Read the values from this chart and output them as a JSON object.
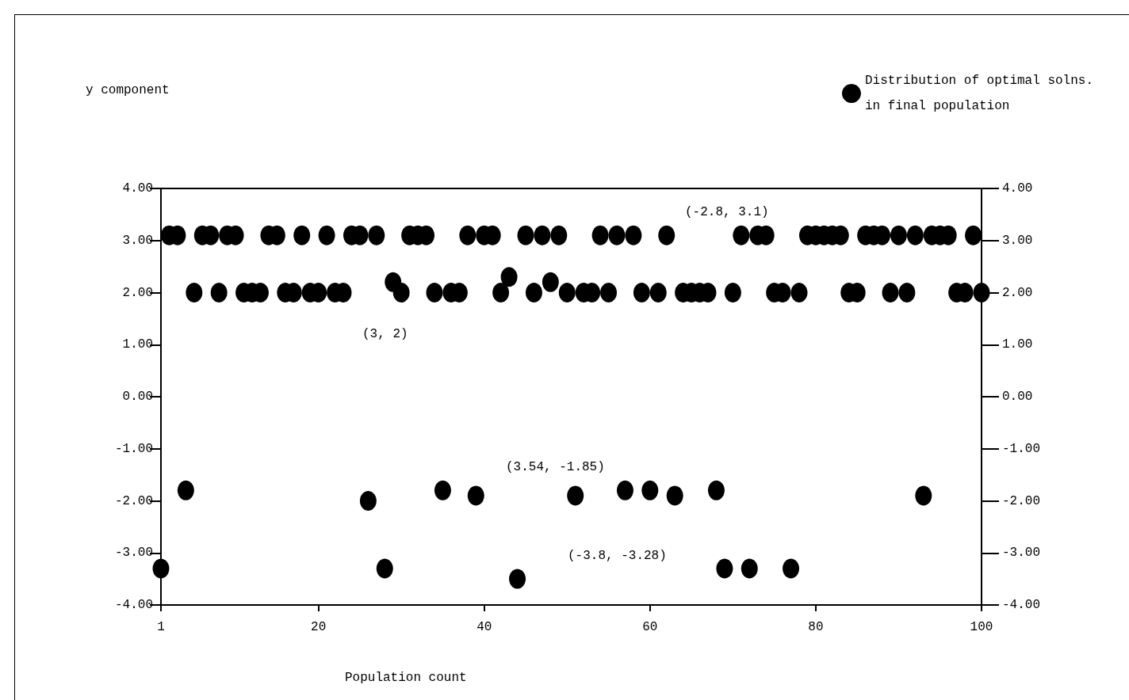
{
  "chart_data": {
    "type": "scatter",
    "xlabel": "Population count",
    "x": [
      1,
      2,
      3,
      4,
      5,
      6,
      7,
      8,
      9,
      10,
      11,
      12,
      13,
      14,
      15,
      16,
      17,
      18,
      19,
      20,
      21,
      22,
      23,
      24,
      25,
      26,
      27,
      28,
      29,
      30,
      31,
      32,
      33,
      34,
      35,
      36,
      37,
      38,
      39,
      40,
      41,
      42,
      43,
      44,
      45,
      46,
      47,
      48,
      49,
      50,
      51,
      52,
      53,
      54,
      55,
      56,
      57,
      58,
      59,
      60,
      61,
      62,
      63,
      64,
      65,
      66,
      67,
      68,
      69,
      70,
      71,
      72,
      73,
      74,
      75,
      76,
      77,
      78,
      79,
      80,
      81,
      82,
      83,
      84,
      85,
      86,
      87,
      88,
      89,
      90,
      91,
      92,
      93,
      94,
      95,
      96,
      97,
      98,
      99,
      100
    ],
    "series": [
      {
        "name": "Distribution of optimal solns.\nin final population",
        "color": "#000000",
        "values": [
          -3.3,
          3.1,
          3.1,
          -1.8,
          2,
          3.1,
          3.1,
          2,
          3.1,
          3.1,
          2,
          2,
          2,
          3.1,
          3.1,
          2,
          2,
          3.1,
          2,
          2,
          3.1,
          2,
          2,
          3.1,
          3.1,
          -2,
          3.1,
          -3.3,
          2.2,
          2,
          3.1,
          3.1,
          3.1,
          2,
          -1.8,
          2,
          2,
          3.1,
          -1.9,
          3.1,
          3.1,
          2,
          2.3,
          -3.5,
          3.1,
          2,
          3.1,
          2.2,
          3.1,
          2,
          -1.9,
          2,
          2,
          3.1,
          2,
          3.1,
          -1.8,
          3.1,
          2,
          -1.8,
          2,
          3.1,
          -1.9,
          2,
          2,
          2,
          2,
          -1.8,
          -3.3,
          2,
          3.1,
          -3.3,
          3.1,
          3.1,
          2,
          2,
          -3.3,
          2,
          3.1,
          3.1,
          3.1,
          3.1,
          3.1,
          2,
          2,
          3.1,
          3.1,
          3.1,
          2,
          3.1,
          2,
          3.1,
          -1.9,
          3.1,
          3.1,
          3.1,
          2,
          2,
          3.1,
          2
        ]
      }
    ],
    "xlim": [
      1,
      100
    ],
    "xticks": [
      1,
      20,
      40,
      60,
      80,
      100
    ],
    "ylim": [
      -4,
      4
    ],
    "yticks": [
      {
        "value": -4,
        "label": "-4.00"
      },
      {
        "value": -3,
        "label": "-3.00"
      },
      {
        "value": -2,
        "label": "-2.00"
      },
      {
        "value": -1,
        "label": "-1.00"
      },
      {
        "value": 0,
        "label": "0.00"
      },
      {
        "value": 1,
        "label": "1.00"
      },
      {
        "value": 2,
        "label": "2.00"
      },
      {
        "value": 3,
        "label": "3.00"
      },
      {
        "value": 4,
        "label": "4.00"
      }
    ],
    "y2lim": [
      -4,
      4
    ],
    "y2ticks": [
      {
        "value": -4,
        "label": "-4.00"
      },
      {
        "value": -3,
        "label": "-3.00"
      },
      {
        "value": -2,
        "label": "-2.00"
      },
      {
        "value": -1,
        "label": "-1.00"
      },
      {
        "value": 0,
        "label": "0.00"
      },
      {
        "value": 1,
        "label": "1.00"
      },
      {
        "value": 2,
        "label": "2.00"
      },
      {
        "value": 3,
        "label": "3.00"
      },
      {
        "value": 4,
        "label": "4.00"
      }
    ],
    "annotations": [
      "y component",
      "(-2.8, 3.1)",
      "(3, 2)",
      "(3.54, -1.85)",
      "(-3.8, -3.28)"
    ],
    "legend": "top right",
    "grid": false,
    "marker": "circle"
  }
}
